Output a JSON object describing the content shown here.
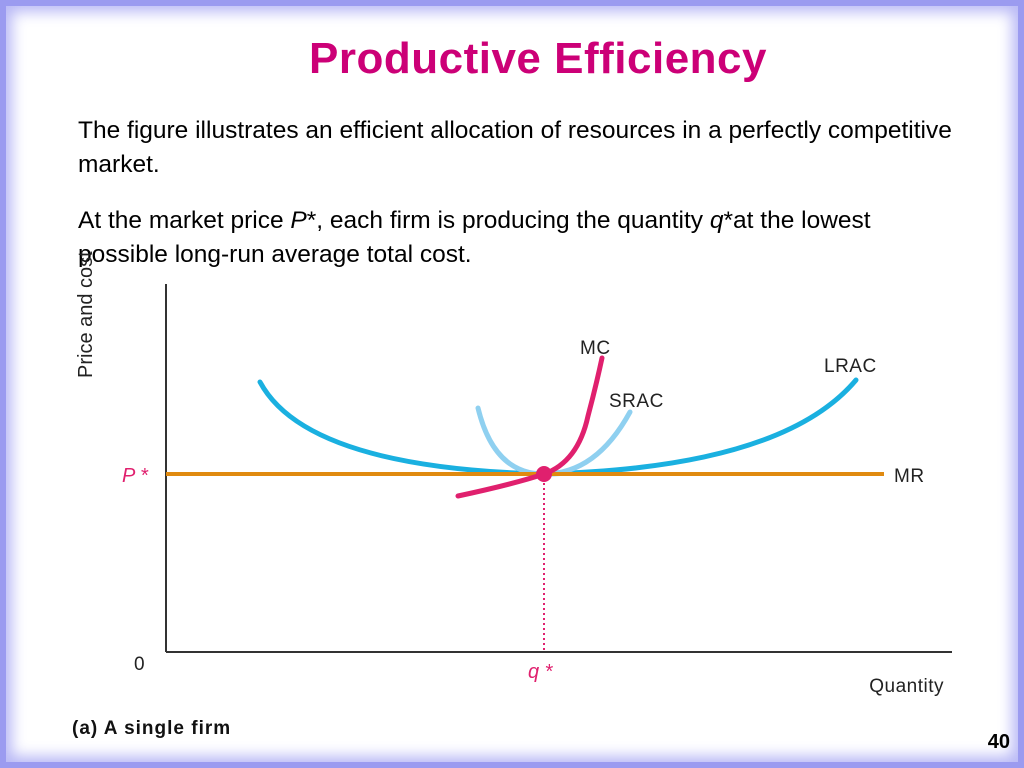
{
  "slide": {
    "title": "Productive  Efficiency",
    "paragraph1": "The figure illustrates an efficient allocation of resources in a perfectly competitive market.",
    "paragraph2": {
      "part1": "At the market price ",
      "p_star": "P",
      "part2": "*, each firm is producing the quantity ",
      "q_star": "q",
      "part3": "*at the lowest possible long-run average total cost."
    },
    "page_number": "40"
  },
  "colors": {
    "title": "#cc0077",
    "lrac": "#1ab0e0",
    "srac": "#8fd0f0",
    "mc": "#e0206e",
    "mr": "#e08a10",
    "border": "#9b9bf0"
  },
  "chart_data": {
    "type": "line",
    "ylabel": "Price and cost",
    "xlabel": "Quantity",
    "origin_label": "0",
    "caption": "(a) A single firm",
    "x_tick_labels": [
      "q *"
    ],
    "y_tick_labels": [
      "P *"
    ],
    "equilibrium": {
      "x": 1,
      "y": 1,
      "label_x": "q *",
      "label_y": "P *"
    },
    "series": [
      {
        "name": "MC",
        "color": "#e0206e",
        "shape": "rising curve through the minimum of SRAC and LRAC"
      },
      {
        "name": "SRAC",
        "color": "#8fd0f0",
        "shape": "narrow U-shaped curve with minimum at (q*, P*)"
      },
      {
        "name": "LRAC",
        "color": "#1ab0e0",
        "shape": "wide U-shaped curve with minimum at (q*, P*)"
      },
      {
        "name": "MR",
        "color": "#e08a10",
        "shape": "horizontal line at P*"
      }
    ]
  }
}
